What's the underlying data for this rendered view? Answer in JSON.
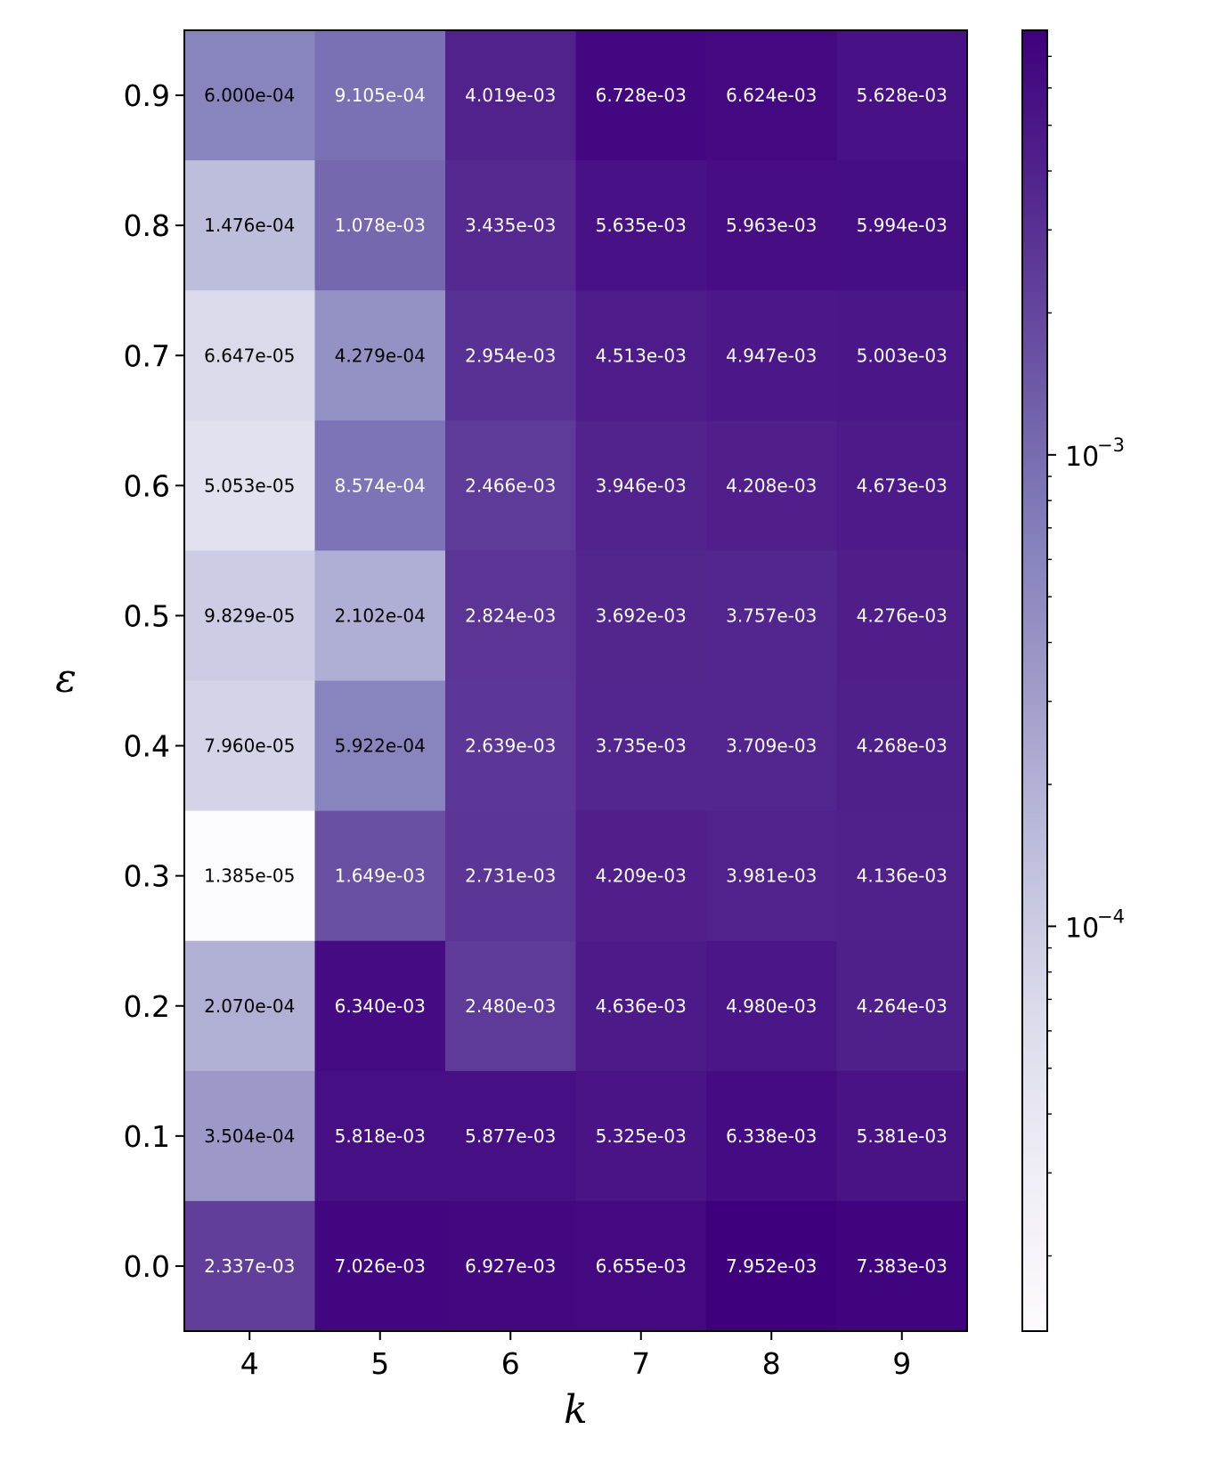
{
  "chart_data": {
    "type": "heatmap",
    "xlabel": "k",
    "ylabel": "ε",
    "x": [
      "4",
      "5",
      "6",
      "7",
      "8",
      "9"
    ],
    "y": [
      "0.9",
      "0.8",
      "0.7",
      "0.6",
      "0.5",
      "0.4",
      "0.3",
      "0.2",
      "0.1",
      "0.0"
    ],
    "values": [
      [
        0.0006,
        0.0009105,
        0.004019,
        0.006728,
        0.006624,
        0.005628
      ],
      [
        0.0001476,
        0.001078,
        0.003435,
        0.005635,
        0.005963,
        0.005994
      ],
      [
        6.647e-05,
        0.0004279,
        0.002954,
        0.004513,
        0.004947,
        0.005003
      ],
      [
        5.053e-05,
        0.0008574,
        0.002466,
        0.003946,
        0.004208,
        0.004673
      ],
      [
        9.829e-05,
        0.0002102,
        0.002824,
        0.003692,
        0.003757,
        0.004276
      ],
      [
        7.96e-05,
        0.0005922,
        0.002639,
        0.003735,
        0.003709,
        0.004268
      ],
      [
        1.385e-05,
        0.001649,
        0.002731,
        0.004209,
        0.003981,
        0.004136
      ],
      [
        0.000207,
        0.00634,
        0.00248,
        0.004636,
        0.00498,
        0.004264
      ],
      [
        0.0003504,
        0.005818,
        0.005877,
        0.005325,
        0.006338,
        0.005381
      ],
      [
        0.002337,
        0.007026,
        0.006927,
        0.006655,
        0.007952,
        0.007383
      ]
    ],
    "labels": [
      [
        "6.000e-04",
        "9.105e-04",
        "4.019e-03",
        "6.728e-03",
        "6.624e-03",
        "5.628e-03"
      ],
      [
        "1.476e-04",
        "1.078e-03",
        "3.435e-03",
        "5.635e-03",
        "5.963e-03",
        "5.994e-03"
      ],
      [
        "6.647e-05",
        "4.279e-04",
        "2.954e-03",
        "4.513e-03",
        "4.947e-03",
        "5.003e-03"
      ],
      [
        "5.053e-05",
        "8.574e-04",
        "2.466e-03",
        "3.946e-03",
        "4.208e-03",
        "4.673e-03"
      ],
      [
        "9.829e-05",
        "2.102e-04",
        "2.824e-03",
        "3.692e-03",
        "3.757e-03",
        "4.276e-03"
      ],
      [
        "7.960e-05",
        "5.922e-04",
        "2.639e-03",
        "3.735e-03",
        "3.709e-03",
        "4.268e-03"
      ],
      [
        "1.385e-05",
        "1.649e-03",
        "2.731e-03",
        "4.209e-03",
        "3.981e-03",
        "4.136e-03"
      ],
      [
        "2.070e-04",
        "6.340e-03",
        "2.480e-03",
        "4.636e-03",
        "4.980e-03",
        "4.264e-03"
      ],
      [
        "3.504e-04",
        "5.818e-03",
        "5.877e-03",
        "5.325e-03",
        "6.338e-03",
        "5.381e-03"
      ],
      [
        "2.337e-03",
        "7.026e-03",
        "6.927e-03",
        "6.655e-03",
        "7.952e-03",
        "7.383e-03"
      ]
    ],
    "colorbar": {
      "scale": "log",
      "range": [
        1.385e-05,
        0.007952
      ],
      "colormap": "Purples",
      "ticks": [
        {
          "value": 0.0001,
          "base": "10",
          "exp": "−4"
        },
        {
          "value": 0.001,
          "base": "10",
          "exp": "−3"
        }
      ]
    },
    "colors": {
      "low": "#fcfbfd",
      "high": "#3f007d"
    },
    "grid": false,
    "legend": "none"
  }
}
